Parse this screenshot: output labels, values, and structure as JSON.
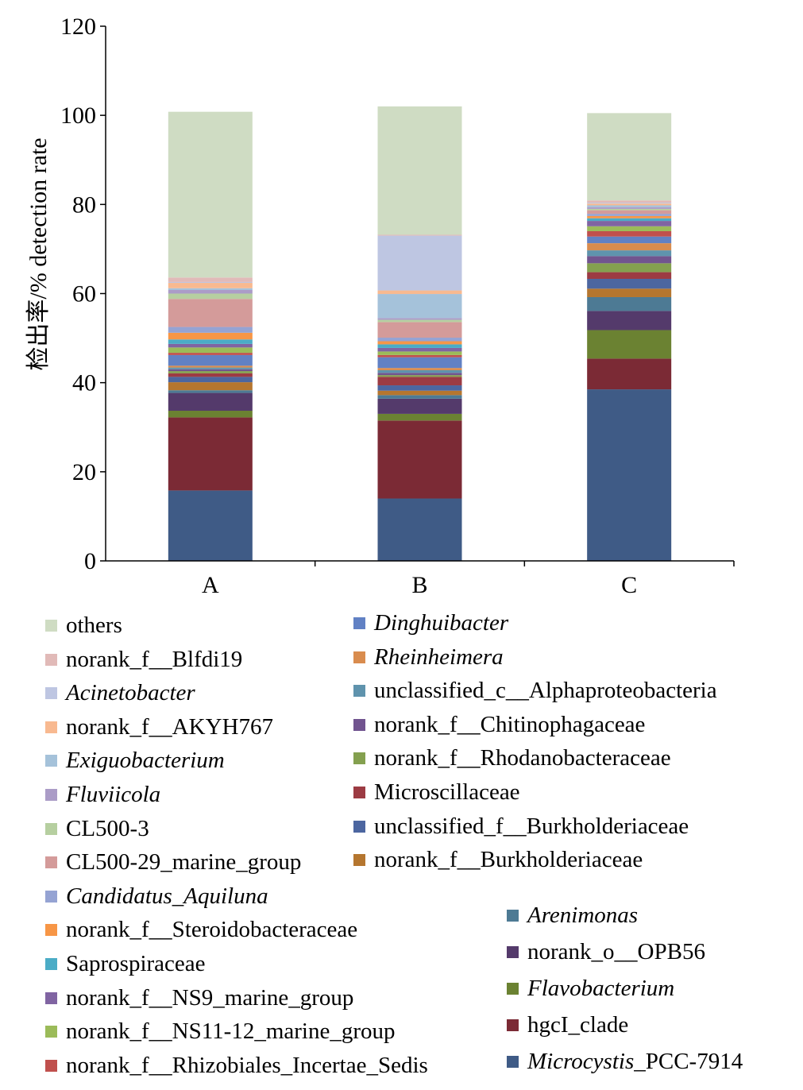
{
  "chart_data": {
    "type": "bar",
    "stacked": true,
    "title": "",
    "xlabel": "",
    "ylabel": "检出率/% detection rate",
    "ylim": [
      0,
      120
    ],
    "yticks": [
      0,
      20,
      40,
      60,
      80,
      100,
      120
    ],
    "categories": [
      "A",
      "B",
      "C"
    ],
    "series": [
      {
        "name": "Microcystis_PCC-7914",
        "color": "#3f5b86",
        "values": [
          15.8,
          14.0,
          38.5
        ]
      },
      {
        "name": "hgcI_clade",
        "color": "#7b2a35",
        "values": [
          16.4,
          17.5,
          6.9
        ]
      },
      {
        "name": "Flavobacterium",
        "color": "#6b8232",
        "values": [
          1.5,
          1.5,
          6.4
        ]
      },
      {
        "name": "norank_o__OPB56",
        "color": "#543a6b",
        "values": [
          4.0,
          3.4,
          4.3
        ]
      },
      {
        "name": "Arenimonas",
        "color": "#4d7a94",
        "values": [
          0.6,
          0.8,
          3.1
        ]
      },
      {
        "name": "norank_f__Burkholderiaceae",
        "color": "#b5762f",
        "values": [
          1.8,
          1.0,
          1.9
        ]
      },
      {
        "name": "unclassified_f__Burkholderiaceae",
        "color": "#4c66a0",
        "values": [
          1.2,
          1.2,
          2.2
        ]
      },
      {
        "name": "Microscillaceae",
        "color": "#9c3b43",
        "values": [
          0.8,
          1.9,
          1.5
        ]
      },
      {
        "name": "norank_f__Rhodanobacteraceae",
        "color": "#84a04f",
        "values": [
          0.5,
          0.4,
          2.0
        ]
      },
      {
        "name": "norank_f__Chitinophagaceae",
        "color": "#71548f",
        "values": [
          0.4,
          0.5,
          1.6
        ]
      },
      {
        "name": "unclassified_c__Alphaproteobacteria",
        "color": "#5f93ad",
        "values": [
          0.4,
          0.6,
          1.3
        ]
      },
      {
        "name": "Rheinheimera",
        "color": "#d98c4e",
        "values": [
          0.4,
          0.5,
          1.6
        ]
      },
      {
        "name": "Dinghuibacter",
        "color": "#6181c4",
        "values": [
          2.4,
          2.4,
          1.5
        ]
      },
      {
        "name": "norank_f__Rhizobiales_Incertae_Sedis",
        "color": "#c0504d",
        "values": [
          0.5,
          0.5,
          1.2
        ]
      },
      {
        "name": "norank_f__NS11-12_marine_group",
        "color": "#9bbb59",
        "values": [
          1.2,
          0.8,
          1.1
        ]
      },
      {
        "name": "norank_f__NS9_marine_group",
        "color": "#8064a2",
        "values": [
          0.8,
          0.8,
          1.2
        ]
      },
      {
        "name": "Saprospiraceae",
        "color": "#4bacc6",
        "values": [
          1.0,
          0.8,
          0.6
        ]
      },
      {
        "name": "norank_f__Steroidobacteraceae",
        "color": "#f79646",
        "values": [
          1.5,
          0.7,
          0.5
        ]
      },
      {
        "name": "Candidatus_Aquiluna",
        "color": "#95a3d3",
        "values": [
          1.3,
          0.8,
          0.5
        ]
      },
      {
        "name": "CL500-29_marine_group",
        "color": "#d49b9a",
        "values": [
          6.3,
          3.5,
          0.8
        ]
      },
      {
        "name": "CL500-3",
        "color": "#b6cfa0",
        "values": [
          1.2,
          0.5,
          0.3
        ]
      },
      {
        "name": "Fluviicola",
        "color": "#ab9cc7",
        "values": [
          0.8,
          0.4,
          0.4
        ]
      },
      {
        "name": "Exiguobacterium",
        "color": "#a5c2da",
        "values": [
          0.4,
          5.4,
          0.4
        ]
      },
      {
        "name": "norank_f__AKYH767",
        "color": "#f8b990",
        "values": [
          1.2,
          0.8,
          0.4
        ]
      },
      {
        "name": "Acinetobacter",
        "color": "#bec6e2",
        "values": [
          0.2,
          12.3,
          0.2
        ]
      },
      {
        "name": "norank_f__Blfdi19",
        "color": "#e1bab8",
        "values": [
          1.0,
          0.2,
          0.5
        ]
      },
      {
        "name": "others",
        "color": "#cfdcc3",
        "values": [
          37.2,
          28.8,
          19.6
        ]
      }
    ],
    "legend": {
      "placement": "bottom",
      "columns": [
        [
          {
            "label": "others",
            "italic": false
          },
          {
            "label": "norank_f__Blfdi19",
            "italic": false
          },
          {
            "label": "Acinetobacter",
            "italic": true
          },
          {
            "label": "norank_f__AKYH767",
            "italic": false
          },
          {
            "label": "Exiguobacterium",
            "italic": true
          },
          {
            "label": "Fluviicola",
            "italic": true
          },
          {
            "label": "CL500-3",
            "italic": false
          },
          {
            "label": "CL500-29_marine_group",
            "italic": false
          },
          {
            "label": "Candidatus_Aquiluna",
            "italic": true
          },
          {
            "label": "norank_f__Steroidobacteraceae",
            "italic": false
          },
          {
            "label": "Saprospiraceae",
            "italic": false
          },
          {
            "label": "norank_f__NS9_marine_group",
            "italic": false
          },
          {
            "label": "norank_f__NS11-12_marine_group",
            "italic": false
          },
          {
            "label": "norank_f__Rhizobiales_Incertae_Sedis",
            "italic": false
          }
        ],
        [
          {
            "label": "Dinghuibacter",
            "italic": true
          },
          {
            "label": "Rheinheimera",
            "italic": true
          },
          {
            "label": "unclassified_c__Alphaproteobacteria",
            "italic": false
          },
          {
            "label": "norank_f__Chitinophagaceae",
            "italic": false
          },
          {
            "label": "norank_f__Rhodanobacteraceae",
            "italic": false
          },
          {
            "label": "Microscillaceae",
            "italic": false
          },
          {
            "label": "unclassified_f__Burkholderiaceae",
            "italic": false
          },
          {
            "label": "norank_f__Burkholderiaceae",
            "italic": false
          }
        ],
        [
          {
            "label": "Arenimonas",
            "italic": true
          },
          {
            "label": "norank_o__OPB56",
            "italic": false
          },
          {
            "label": "Flavobacterium",
            "italic": true
          },
          {
            "label": "hgcI_clade",
            "italic": false
          },
          {
            "label": "Microcystis_PCC-7914",
            "italic": false,
            "italic_prefix": "Microcystis",
            "suffix": "_PCC-7914"
          }
        ]
      ]
    }
  }
}
